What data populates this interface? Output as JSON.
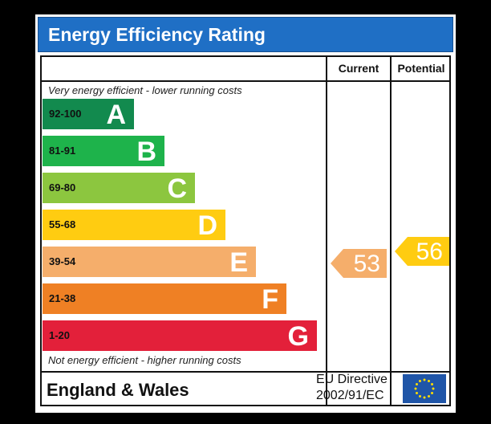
{
  "title": "Energy Efficiency Rating",
  "columns": {
    "current": "Current",
    "potential": "Potential"
  },
  "notes": {
    "top": "Very energy efficient - lower running costs",
    "bottom": "Not energy efficient - higher running costs"
  },
  "footer": {
    "region": "England & Wales",
    "directive_line1": "EU Directive",
    "directive_line2": "2002/91/EC"
  },
  "chart_data": {
    "type": "bar",
    "categories": [
      "A",
      "B",
      "C",
      "D",
      "E",
      "F",
      "G"
    ],
    "bands": [
      {
        "letter": "A",
        "range": "92-100",
        "color": "#128a4e"
      },
      {
        "letter": "B",
        "range": "81-91",
        "color": "#1eb34b"
      },
      {
        "letter": "C",
        "range": "69-80",
        "color": "#8cc63f"
      },
      {
        "letter": "D",
        "range": "55-68",
        "color": "#ffcc11"
      },
      {
        "letter": "E",
        "range": "39-54",
        "color": "#f5ae6b"
      },
      {
        "letter": "F",
        "range": "21-38",
        "color": "#ef8024"
      },
      {
        "letter": "G",
        "range": "1-20",
        "color": "#e3203a"
      }
    ],
    "current": {
      "value": 53,
      "color": "#f5ae6b"
    },
    "potential": {
      "value": 56,
      "color": "#ffcc11"
    }
  }
}
